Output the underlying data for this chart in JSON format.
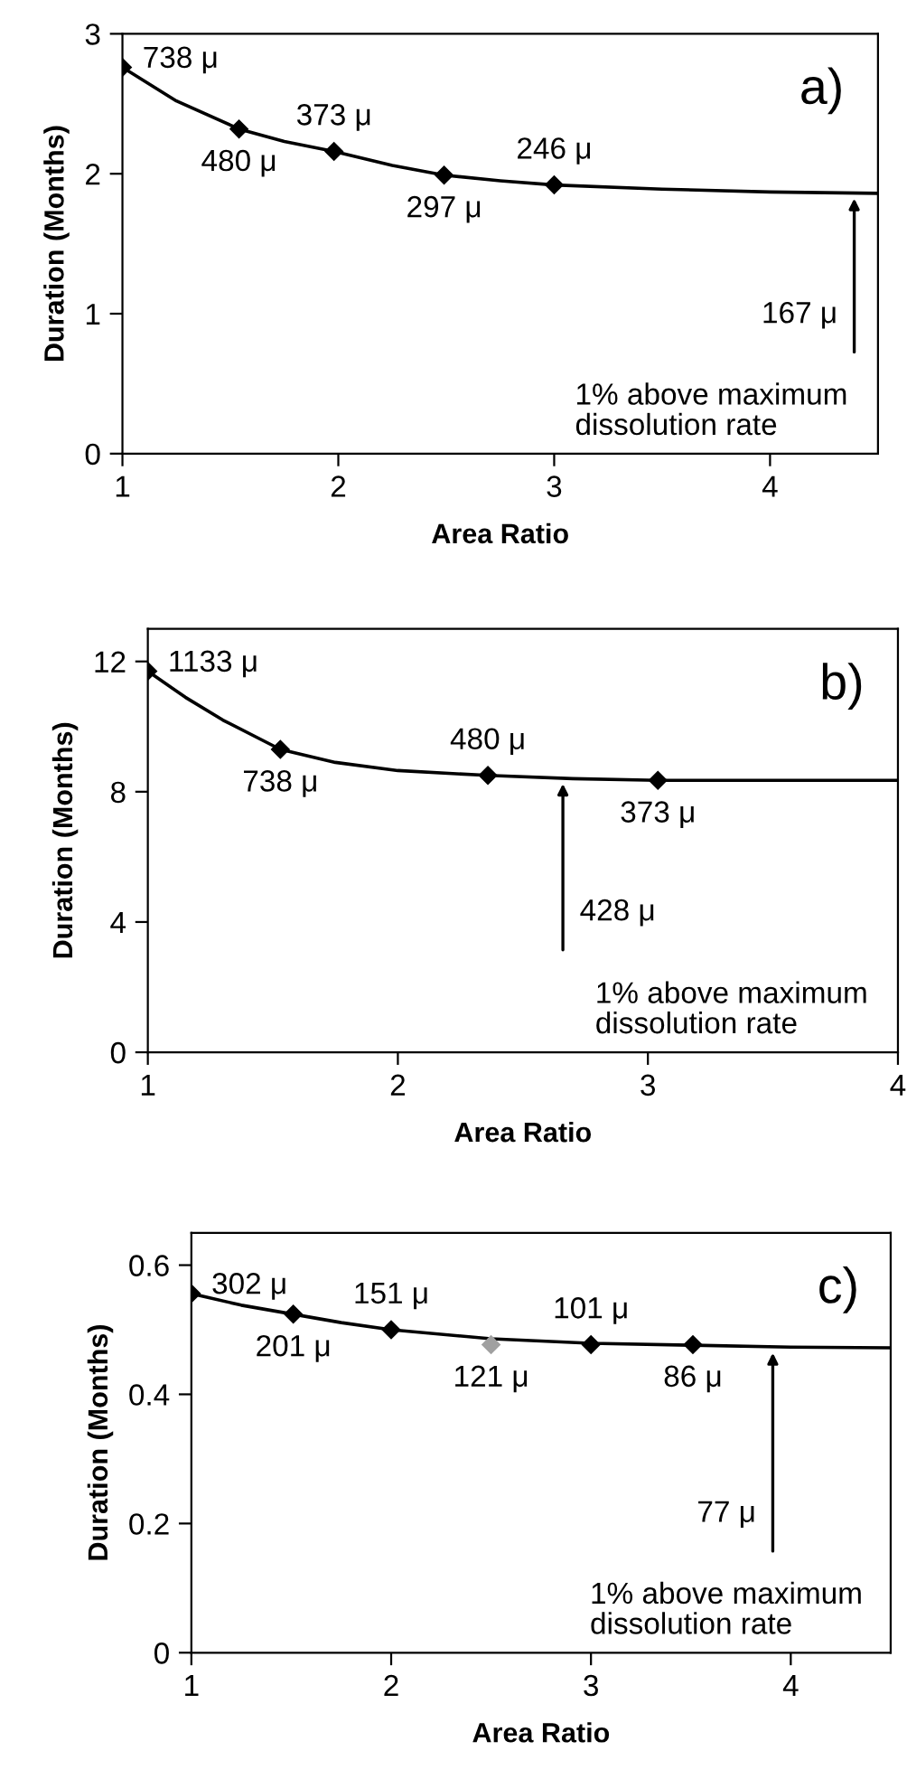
{
  "chart_data": [
    {
      "type": "scatter",
      "title": "a)",
      "xlabel": "Area Ratio",
      "ylabel": "Duration (Months)",
      "xlim": [
        1,
        4.5
      ],
      "ylim": [
        0,
        3
      ],
      "xticks": [
        1,
        2,
        3,
        4
      ],
      "yticks": [
        0,
        1,
        2,
        3
      ],
      "grid": false,
      "series": [
        {
          "marker": "diamond",
          "color": "#000000",
          "x": [
            1,
            1.54,
            1.98,
            2.49,
            3.0
          ],
          "values": [
            2.76,
            2.32,
            2.16,
            1.99,
            1.92
          ]
        },
        {
          "type": "line",
          "marker": "none",
          "color": "#000000",
          "x": [
            1,
            1.25,
            1.54,
            1.75,
            1.98,
            2.25,
            2.49,
            2.75,
            3.0,
            3.5,
            4.0,
            4.5
          ],
          "values": [
            2.76,
            2.52,
            2.32,
            2.23,
            2.16,
            2.06,
            1.99,
            1.95,
            1.92,
            1.89,
            1.87,
            1.86
          ]
        }
      ],
      "annotations": [
        {
          "text": "738 μ",
          "x": 1,
          "y": 2.76
        },
        {
          "text": "480 μ",
          "x": 1.54,
          "y": 2.32
        },
        {
          "text": "373 μ",
          "x": 1.98,
          "y": 2.16
        },
        {
          "text": "297 μ",
          "x": 2.49,
          "y": 1.99
        },
        {
          "text": "246 μ",
          "x": 3.0,
          "y": 1.92
        },
        {
          "text": "167 μ",
          "x": 4.39,
          "y": 1.86
        },
        "1% above maximum\ndissolution rate"
      ]
    },
    {
      "type": "scatter",
      "title": "b)",
      "xlabel": "Area Ratio",
      "ylabel": "Duration (Months)",
      "xlim": [
        1,
        4
      ],
      "ylim": [
        0,
        13
      ],
      "xticks": [
        1,
        2,
        3,
        4
      ],
      "yticks": [
        0,
        4,
        8,
        12
      ],
      "grid": false,
      "series": [
        {
          "marker": "diamond",
          "color": "#000000",
          "x": [
            1,
            1.53,
            2.36,
            3.04
          ],
          "values": [
            11.7,
            9.3,
            8.5,
            8.35
          ]
        },
        {
          "type": "line",
          "marker": "none",
          "color": "#000000",
          "x": [
            1,
            1.15,
            1.3,
            1.53,
            1.75,
            2.0,
            2.36,
            2.7,
            3.04,
            3.5,
            4.0
          ],
          "values": [
            11.7,
            10.9,
            10.2,
            9.3,
            8.9,
            8.65,
            8.5,
            8.4,
            8.35,
            8.35,
            8.35
          ]
        }
      ],
      "annotations": [
        {
          "text": "1133 μ",
          "x": 1,
          "y": 11.7
        },
        {
          "text": "738 μ",
          "x": 1.53,
          "y": 9.3
        },
        {
          "text": "480 μ",
          "x": 2.36,
          "y": 8.5
        },
        {
          "text": "373 μ",
          "x": 3.04,
          "y": 8.35
        },
        {
          "text": "428 μ",
          "x": 2.66,
          "y": 8.4
        },
        "1% above maximum\ndissolution rate"
      ]
    },
    {
      "type": "scatter",
      "title": "c)",
      "xlabel": "Area Ratio",
      "ylabel": "Duration (Months)",
      "xlim": [
        1,
        4.5
      ],
      "ylim": [
        0,
        0.65
      ],
      "xticks": [
        1,
        2,
        3,
        4
      ],
      "yticks": [
        0,
        0.2,
        0.4,
        0.6
      ],
      "grid": false,
      "series": [
        {
          "marker": "diamond",
          "colors": [
            "#000000",
            "#000000",
            "#000000",
            "#a0a0a0",
            "#000000",
            "#000000"
          ],
          "x": [
            1,
            1.51,
            2.0,
            2.5,
            3.0,
            3.51
          ],
          "values": [
            0.556,
            0.524,
            0.5,
            0.477,
            0.477,
            0.477
          ]
        },
        {
          "type": "line",
          "marker": "none",
          "color": "#000000",
          "x": [
            1,
            1.25,
            1.51,
            1.75,
            2.0,
            2.5,
            3.0,
            3.51,
            4.0,
            4.5
          ],
          "values": [
            0.556,
            0.538,
            0.524,
            0.511,
            0.5,
            0.486,
            0.479,
            0.476,
            0.473,
            0.472
          ]
        }
      ],
      "annotations": [
        {
          "text": "302 μ",
          "x": 1,
          "y": 0.556
        },
        {
          "text": "201 μ",
          "x": 1.51,
          "y": 0.524
        },
        {
          "text": "151 μ",
          "x": 2.0,
          "y": 0.5
        },
        {
          "text": "121 μ",
          "x": 2.5,
          "y": 0.477
        },
        {
          "text": "101 μ",
          "x": 3.0,
          "y": 0.477
        },
        {
          "text": "86 μ",
          "x": 3.51,
          "y": 0.477
        },
        {
          "text": "77 μ",
          "x": 3.91,
          "y": 0.472
        },
        "1% above maximum\ndissolution rate"
      ]
    }
  ]
}
